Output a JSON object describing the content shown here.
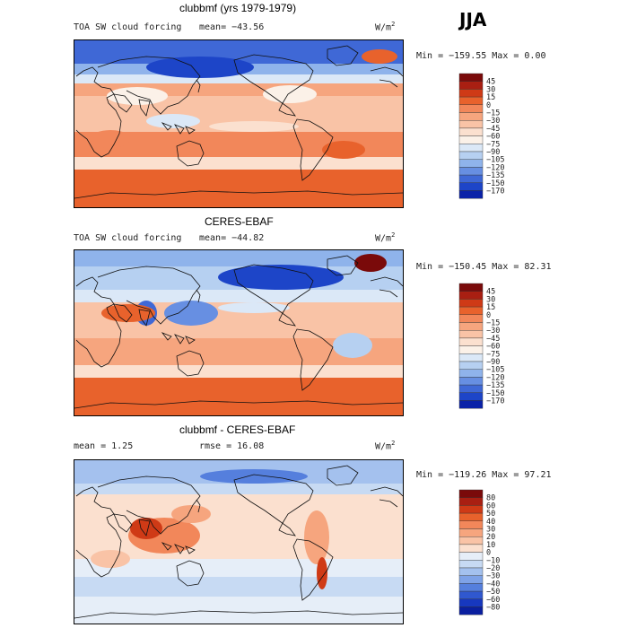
{
  "season": "JJA",
  "panels": [
    {
      "title": "clubbmf (yrs 1979-1979)",
      "left_label": "TOA SW cloud forcing",
      "stat1": "mean= −43.56",
      "stat2": "",
      "units": "W/m",
      "units_exp": "2",
      "minmax": "Min = −159.55 Max =    0.00",
      "colorbar": {
        "labels": [
          "45",
          "30",
          "15",
          "0",
          "−15",
          "−30",
          "−45",
          "−60",
          "−75",
          "−90",
          "−105",
          "−120",
          "−135",
          "−150",
          "−170"
        ],
        "colors": [
          "#7a0a0a",
          "#a91f12",
          "#cf3a16",
          "#e8622c",
          "#f2875a",
          "#f6a57e",
          "#f9c3a6",
          "#fbe0cf",
          "#fbf1e8",
          "#dbe8f7",
          "#b6d0f1",
          "#8fb3eb",
          "#678fe2",
          "#3f68d6",
          "#1d45c8",
          "#0a22a8"
        ],
        "tick_values": [
          45,
          30,
          15,
          0,
          -15,
          -30,
          -45,
          -60,
          -75,
          -90,
          -105,
          -120,
          -135,
          -150,
          -170
        ]
      }
    },
    {
      "title": "CERES-EBAF",
      "left_label": "TOA SW cloud forcing",
      "stat1": "mean= −44.82",
      "stat2": "",
      "units": "W/m",
      "units_exp": "2",
      "minmax": "Min = −150.45 Max =  82.31",
      "colorbar": {
        "labels": [
          "45",
          "30",
          "15",
          "0",
          "−15",
          "−30",
          "−45",
          "−60",
          "−75",
          "−90",
          "−105",
          "−120",
          "−135",
          "−150",
          "−170"
        ],
        "colors": [
          "#7a0a0a",
          "#a91f12",
          "#cf3a16",
          "#e8622c",
          "#f2875a",
          "#f6a57e",
          "#f9c3a6",
          "#fbe0cf",
          "#fbf1e8",
          "#dbe8f7",
          "#b6d0f1",
          "#8fb3eb",
          "#678fe2",
          "#3f68d6",
          "#1d45c8",
          "#0a22a8"
        ],
        "tick_values": [
          45,
          30,
          15,
          0,
          -15,
          -30,
          -45,
          -60,
          -75,
          -90,
          -105,
          -120,
          -135,
          -150,
          -170
        ]
      }
    },
    {
      "title": "clubbmf - CERES-EBAF",
      "left_label": "",
      "stat1": "mean =    1.25",
      "stat2": "rmse =   16.08",
      "units": "W/m",
      "units_exp": "2",
      "minmax": "Min = −119.26 Max =  97.21",
      "colorbar": {
        "labels": [
          "80",
          "60",
          "50",
          "40",
          "30",
          "20",
          "10",
          "0",
          "−10",
          "−20",
          "−30",
          "−40",
          "−50",
          "−60",
          "−80"
        ],
        "colors": [
          "#7a0a0a",
          "#a91f12",
          "#cf3a16",
          "#e8622c",
          "#f2875a",
          "#f6a57e",
          "#f9c3a6",
          "#fbe0cf",
          "#e6eef8",
          "#c7daf3",
          "#a4c1ee",
          "#7ea2e7",
          "#557fdd",
          "#3058cf",
          "#1738bf",
          "#0a1f9f"
        ],
        "tick_values": [
          80,
          60,
          50,
          40,
          30,
          20,
          10,
          0,
          -10,
          -20,
          -30,
          -40,
          -50,
          -60,
          -80
        ]
      }
    }
  ]
}
